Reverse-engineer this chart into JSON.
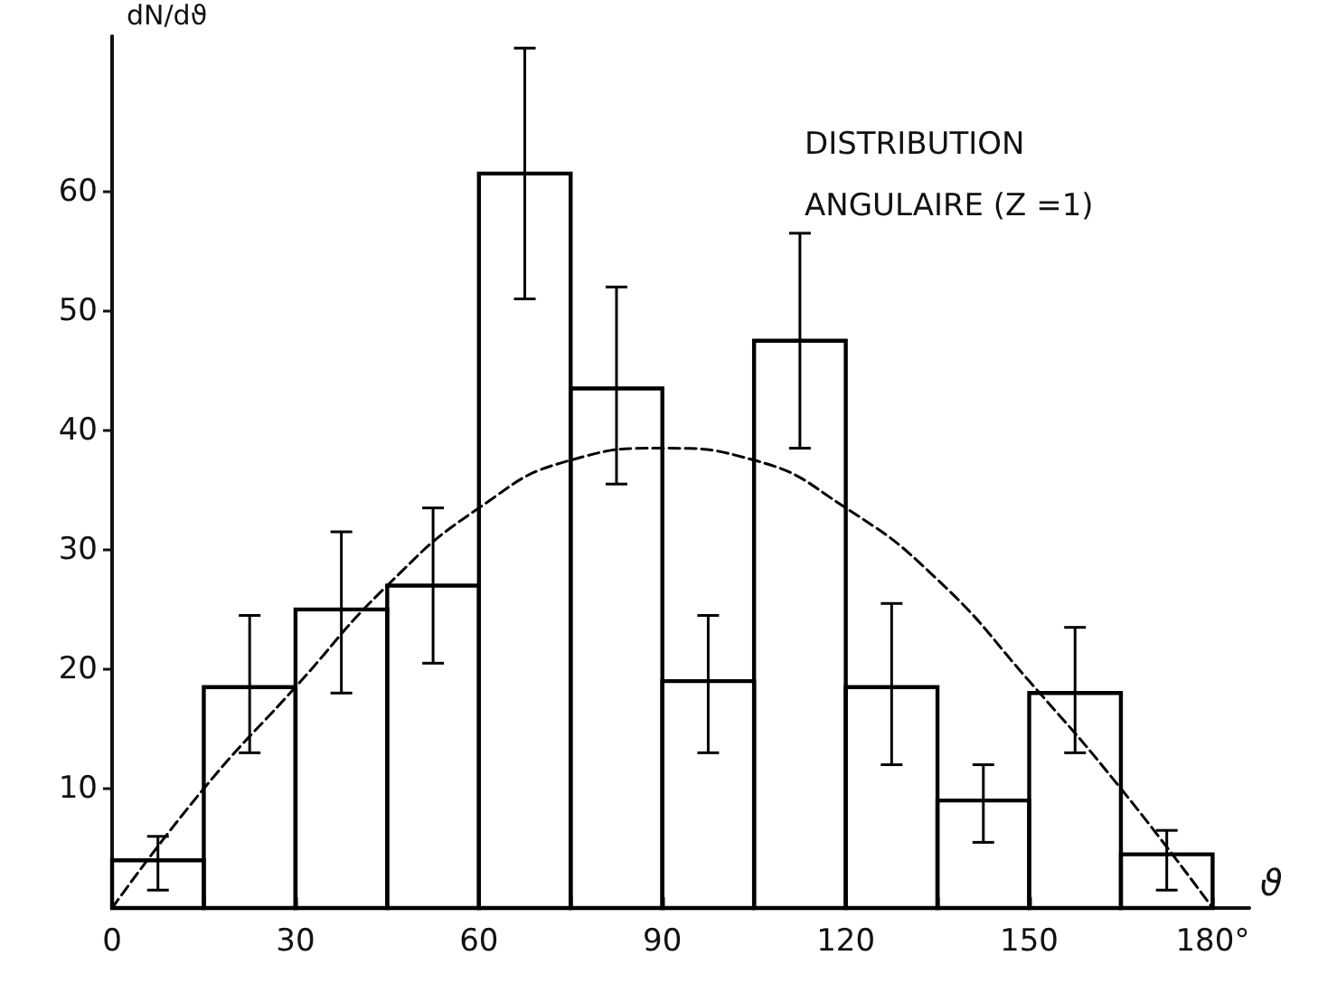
{
  "chart_data": {
    "type": "histogram",
    "title": "DISTRIBUTION\nANGULAIRE (Z =1)",
    "ylabel": "dN/dϑ",
    "xlabel": "ϑ",
    "series": [
      {
        "color": "#000000",
        "bins": [
          0,
          15,
          30,
          45,
          60,
          75,
          90,
          105,
          120,
          135,
          150,
          165,
          180
        ],
        "values": [
          4,
          18.5,
          25,
          27,
          61.5,
          43.5,
          19,
          47.5,
          18.5,
          9,
          18,
          4.5
        ],
        "errors": [
          [
            1.5,
            6
          ],
          [
            13,
            24.5
          ],
          [
            18,
            31.5
          ],
          [
            20.5,
            33.5
          ],
          [
            51,
            72
          ],
          [
            35.5,
            52
          ],
          [
            13,
            24.5
          ],
          [
            38.5,
            56.5
          ],
          [
            12,
            25.5
          ],
          [
            5.5,
            12
          ],
          [
            13,
            23.5
          ],
          [
            1.5,
            6.5
          ]
        ]
      },
      {
        "type": "line",
        "color": "#000000",
        "line_style": "dashed",
        "marker": "none",
        "x": [
          0,
          15,
          30,
          45,
          60,
          75,
          90,
          105,
          120,
          135,
          150,
          165,
          180
        ],
        "values": [
          0,
          10,
          18.5,
          27,
          33.5,
          37.5,
          38.5,
          37.5,
          33.5,
          27.5,
          19,
          10,
          0
        ]
      }
    ],
    "xlim": [
      0,
      186
    ],
    "ylim": [
      0,
      73
    ],
    "xticks": [
      0,
      {
        "value": 15,
        "label": null
      },
      30,
      {
        "value": 45,
        "label": null
      },
      60,
      {
        "value": 75,
        "label": null
      },
      90,
      {
        "value": 105,
        "label": null
      },
      120,
      {
        "value": 135,
        "label": null
      },
      150,
      {
        "value": 165,
        "label": null
      },
      {
        "value": 180,
        "label": "180°"
      }
    ],
    "yticks": [
      10,
      20,
      30,
      40,
      50,
      60
    ],
    "grid": false
  }
}
